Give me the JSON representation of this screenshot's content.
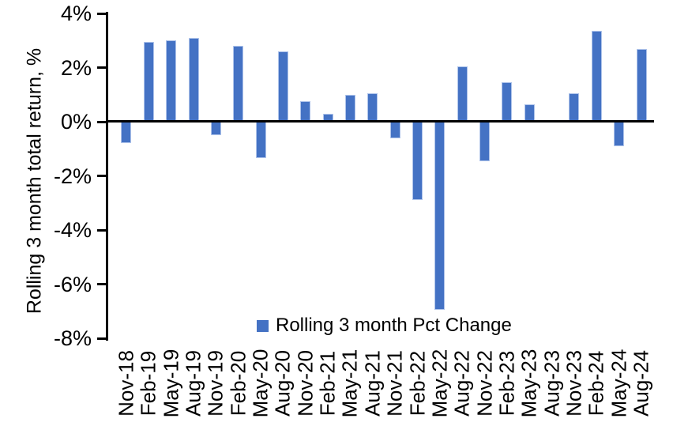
{
  "chart_data": {
    "type": "bar",
    "title": "",
    "xlabel": "",
    "ylabel": "Rolling 3 month total return, %",
    "legend": "Rolling 3 month Pct Change",
    "legend_position": "bottom-center-inside",
    "grid": false,
    "ylim": [
      -8,
      4
    ],
    "ytick_labels": [
      "4%",
      "2%",
      "0%",
      "-2%",
      "-4%",
      "-6%",
      "-8%"
    ],
    "bar_color": "#4472C4",
    "bar_border_color": "#AEC3EA",
    "axis_color": "#000000",
    "categories": [
      "Nov-18",
      "Feb-19",
      "May-19",
      "Aug-19",
      "Nov-19",
      "Feb-20",
      "May-20",
      "Aug-20",
      "Nov-20",
      "Feb-21",
      "May-21",
      "Aug-21",
      "Nov-21",
      "Feb-22",
      "May-22",
      "Aug-22",
      "Nov-22",
      "Feb-23",
      "May-23",
      "Aug-23",
      "Nov-23",
      "Feb-24",
      "May-24",
      "Aug-24"
    ],
    "values": [
      -0.8,
      2.95,
      3.0,
      3.1,
      -0.5,
      2.8,
      -1.35,
      2.6,
      0.75,
      0.3,
      1.0,
      1.05,
      -0.6,
      -2.9,
      -6.95,
      2.05,
      -1.45,
      1.45,
      0.65,
      0.0,
      1.05,
      3.35,
      -0.9,
      2.7
    ]
  }
}
